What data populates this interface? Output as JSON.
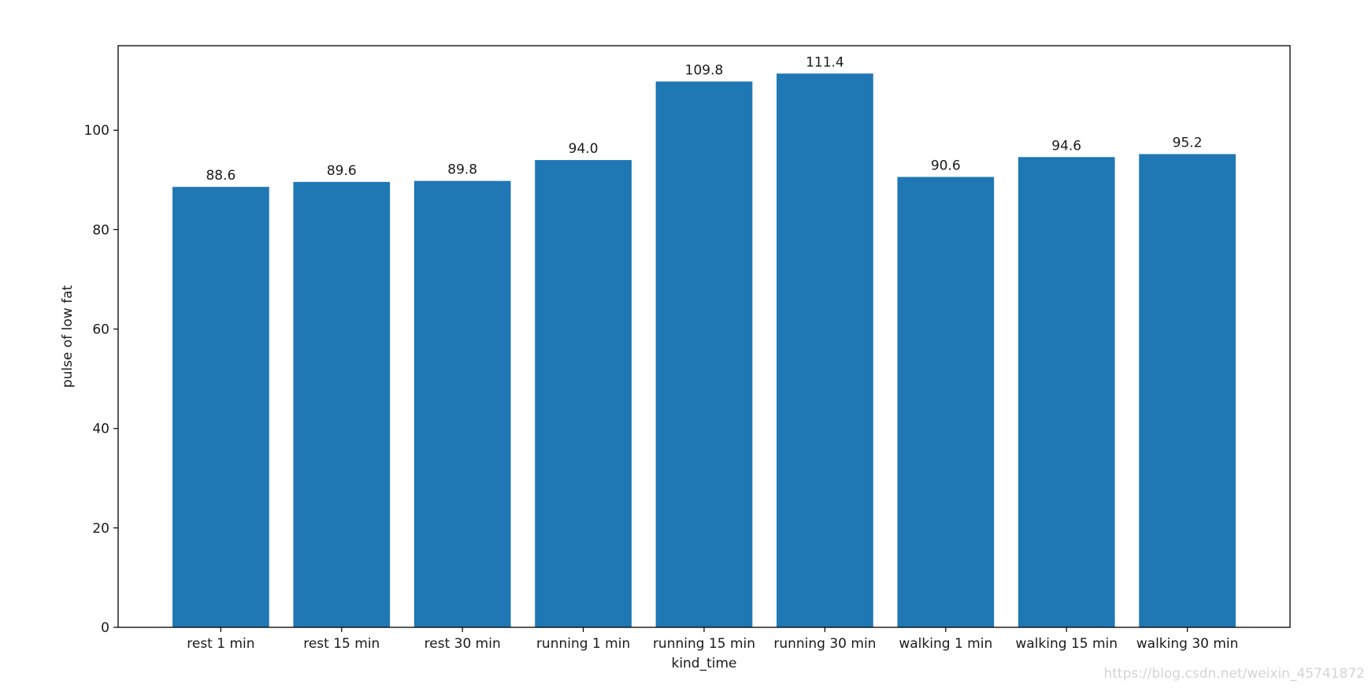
{
  "chart_data": {
    "type": "bar",
    "categories": [
      "rest 1 min",
      "rest 15 min",
      "rest 30 min",
      "running 1 min",
      "running 15 min",
      "running 30 min",
      "walking 1 min",
      "walking 15 min",
      "walking 30 min"
    ],
    "values": [
      88.6,
      89.6,
      89.8,
      94.0,
      109.8,
      111.4,
      90.6,
      94.6,
      95.2
    ],
    "data_labels": [
      "88.6",
      "89.6",
      "89.8",
      "94.0",
      "109.8",
      "111.4",
      "90.6",
      "94.6",
      "95.2"
    ],
    "xlabel": "kind_time",
    "ylabel": "pulse of low fat",
    "ylim": [
      0,
      117
    ],
    "yticks": [
      0,
      20,
      40,
      60,
      80,
      100
    ],
    "grid": false,
    "bar_color": "#1f77b4"
  },
  "watermark": "https://blog.csdn.net/weixin_45741872"
}
